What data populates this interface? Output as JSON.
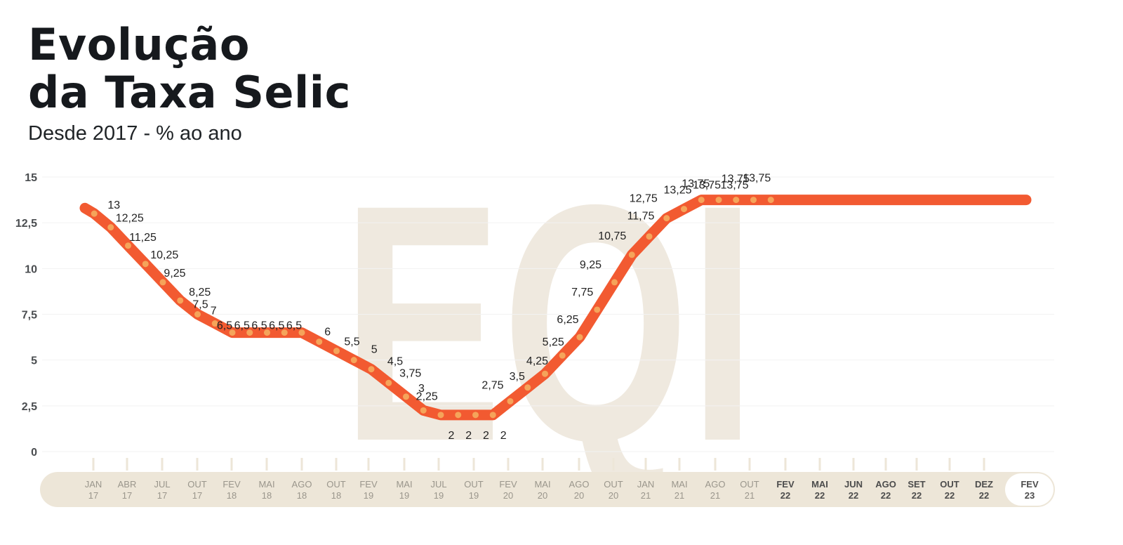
{
  "title": {
    "line1": "Evolução",
    "line2": "da Taxa Selic"
  },
  "subtitle": "Desde 2017 - % ao ano",
  "watermark": "EQI",
  "colors": {
    "line": "#f25a31",
    "dot": "#f5a45a",
    "band": "#ede6d8",
    "grid": "#f2f2f2",
    "watermark": "#efe9df"
  },
  "chart_data": {
    "type": "line",
    "title": "Evolução da Taxa Selic",
    "subtitle": "Desde 2017 - % ao ano",
    "ylim": [
      0,
      15
    ],
    "yticks": [
      "15",
      "12,5",
      "10",
      "7,5",
      "5",
      "2,5",
      "0"
    ],
    "yticks_values": [
      15,
      12.5,
      10,
      7.5,
      5,
      2.5,
      0
    ],
    "grid": true,
    "x_axis_ticks": [
      {
        "mon": "JAN",
        "yr": "17"
      },
      {
        "mon": "ABR",
        "yr": "17"
      },
      {
        "mon": "JUL",
        "yr": "17"
      },
      {
        "mon": "OUT",
        "yr": "17"
      },
      {
        "mon": "FEV",
        "yr": "18"
      },
      {
        "mon": "MAI",
        "yr": "18"
      },
      {
        "mon": "AGO",
        "yr": "18"
      },
      {
        "mon": "OUT",
        "yr": "18"
      },
      {
        "mon": "FEV",
        "yr": "19"
      },
      {
        "mon": "MAI",
        "yr": "19"
      },
      {
        "mon": "JUL",
        "yr": "19"
      },
      {
        "mon": "OUT",
        "yr": "19"
      },
      {
        "mon": "FEV",
        "yr": "20"
      },
      {
        "mon": "MAI",
        "yr": "20"
      },
      {
        "mon": "AGO",
        "yr": "20"
      },
      {
        "mon": "OUT",
        "yr": "20"
      },
      {
        "mon": "JAN",
        "yr": "21"
      },
      {
        "mon": "MAI",
        "yr": "21"
      },
      {
        "mon": "AGO",
        "yr": "21"
      },
      {
        "mon": "OUT",
        "yr": "21"
      },
      {
        "mon": "FEV",
        "yr": "22",
        "bold": true
      },
      {
        "mon": "MAI",
        "yr": "22",
        "bold": true
      },
      {
        "mon": "JUN",
        "yr": "22",
        "bold": true
      },
      {
        "mon": "AGO",
        "yr": "22",
        "bold": true
      },
      {
        "mon": "SET",
        "yr": "22",
        "bold": true
      },
      {
        "mon": "OUT",
        "yr": "22",
        "bold": true
      },
      {
        "mon": "DEZ",
        "yr": "22",
        "bold": true
      },
      {
        "mon": "FEV",
        "yr": "23",
        "bold": true,
        "highlight": true
      }
    ],
    "points": [
      {
        "x": 0.05,
        "y": 13,
        "label": "13"
      },
      {
        "x": 1.0,
        "y": 12.25,
        "label": "12,25"
      },
      {
        "x": 2.0,
        "y": 11.25,
        "label": "11,25"
      },
      {
        "x": 3.0,
        "y": 10.25,
        "label": "10,25"
      },
      {
        "x": 4.0,
        "y": 9.25,
        "label": "9,25"
      },
      {
        "x": 5.0,
        "y": 8.25,
        "label": "8,25"
      },
      {
        "x": 6.0,
        "y": 7.5,
        "label": "7,5"
      },
      {
        "x": 7.0,
        "y": 7,
        "label": "7"
      },
      {
        "x": 8.0,
        "y": 6.5,
        "label": "6,5"
      },
      {
        "x": 9.0,
        "y": 6.5,
        "label": "6,5"
      },
      {
        "x": 10.0,
        "y": 6.5,
        "label": "6,5"
      },
      {
        "x": 11.0,
        "y": 6.5,
        "label": "6,5"
      },
      {
        "x": 12.0,
        "y": 6.5,
        "label": "6,5"
      },
      {
        "x": 13.0,
        "y": 6,
        "label": "6"
      },
      {
        "x": 14.0,
        "y": 5.5,
        "label": "5,5"
      },
      {
        "x": 15.0,
        "y": 5,
        "label": "5"
      },
      {
        "x": 16.0,
        "y": 4.5,
        "label": "4,5"
      },
      {
        "x": 17.0,
        "y": 3.75,
        "label": "3,75"
      },
      {
        "x": 18.0,
        "y": 3,
        "label": "3"
      },
      {
        "x": 19.0,
        "y": 2.25,
        "label": "2,25"
      },
      {
        "x": 20.0,
        "y": 2,
        "label": "2"
      },
      {
        "x": 21.0,
        "y": 2,
        "label": "2"
      },
      {
        "x": 22.0,
        "y": 2,
        "label": "2"
      },
      {
        "x": 23.0,
        "y": 2,
        "label": "2"
      },
      {
        "x": 24.0,
        "y": 2.75,
        "label": "2,75"
      },
      {
        "x": 25.0,
        "y": 3.5,
        "label": "3,5"
      },
      {
        "x": 26.0,
        "y": 4.25,
        "label": "4,25"
      },
      {
        "x": 27.0,
        "y": 5.25,
        "label": "5,25"
      },
      {
        "x": 28.0,
        "y": 6.25,
        "label": "6,25"
      },
      {
        "x": 29.0,
        "y": 7.75,
        "label": "7,75"
      },
      {
        "x": 30.0,
        "y": 9.25,
        "label": "9,25"
      },
      {
        "x": 31.0,
        "y": 10.75,
        "label": "10,75"
      },
      {
        "x": 32.0,
        "y": 11.75,
        "label": "11,75"
      },
      {
        "x": 33.0,
        "y": 12.75,
        "label": "12,75"
      },
      {
        "x": 34.0,
        "y": 13.25,
        "label": "13,25"
      },
      {
        "x": 35.0,
        "y": 13.75,
        "label": "13,75"
      },
      {
        "x": 36.0,
        "y": 13.75,
        "label": "13,75"
      },
      {
        "x": 37.0,
        "y": 13.75,
        "label": "13,75"
      },
      {
        "x": 38.0,
        "y": 13.75,
        "label": "13,75"
      },
      {
        "x": 39.0,
        "y": 13.75,
        "label": "13,75"
      }
    ]
  }
}
